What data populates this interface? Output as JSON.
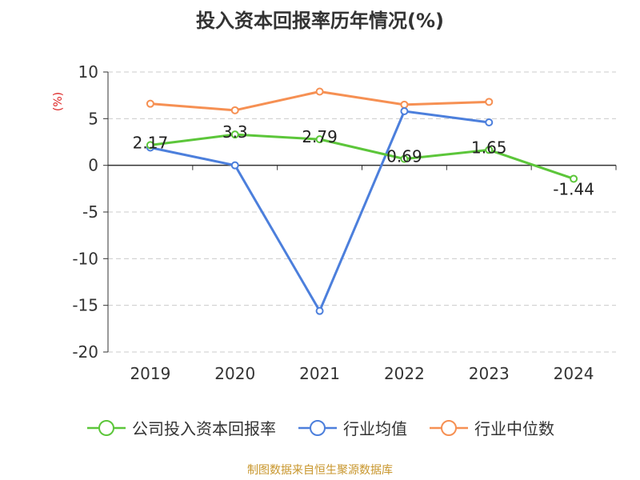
{
  "title": "投入资本回报率历年情况(%)",
  "source": "制图数据来自恒生聚源数据库",
  "chart_data": {
    "type": "line",
    "title": "投入资本回报率历年情况(%)",
    "ylabel": "(%)",
    "xlabel": "",
    "categories": [
      "2019",
      "2020",
      "2021",
      "2022",
      "2023",
      "2024"
    ],
    "ylim": [
      -20,
      10
    ],
    "yticks": [
      10,
      5,
      0,
      -5,
      -10,
      -15,
      -20
    ],
    "grid": true,
    "legend_position": "bottom",
    "series": [
      {
        "name": "公司投入资本回报率",
        "color": "#5cc63a",
        "values": [
          2.17,
          3.3,
          2.79,
          0.69,
          1.65,
          -1.44
        ],
        "labels": [
          "2.17",
          "3.3",
          "2.79",
          "0.69",
          "1.65",
          "-1.44"
        ]
      },
      {
        "name": "行业均值",
        "color": "#4c7fdc",
        "values": [
          1.9,
          0.0,
          -15.6,
          5.8,
          4.6,
          null
        ]
      },
      {
        "name": "行业中位数",
        "color": "#f69053",
        "values": [
          6.6,
          5.9,
          7.9,
          6.5,
          6.8,
          null
        ]
      }
    ]
  }
}
